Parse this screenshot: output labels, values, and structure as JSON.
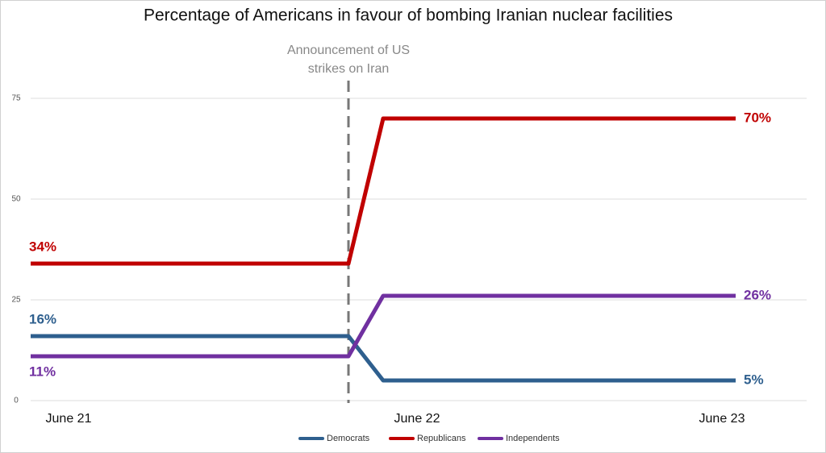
{
  "chart_data": {
    "type": "line",
    "title": "Percentage of Americans in favour of bombing Iranian nuclear facilities",
    "annotation_lines": [
      "Announcement of US",
      "strikes on Iran"
    ],
    "categories": [
      "June 21",
      null,
      "June 22",
      "June 23"
    ],
    "series": [
      {
        "name": "Democrats",
        "color": "#2e5f8e",
        "values": [
          16,
          16,
          5,
          5
        ],
        "value_labels": [
          "16%",
          null,
          null,
          "5%"
        ]
      },
      {
        "name": "Republicans",
        "color": "#c00000",
        "values": [
          34,
          34,
          70,
          70
        ],
        "value_labels": [
          "34%",
          null,
          null,
          "70%"
        ]
      },
      {
        "name": "Independents",
        "color": "#7030a0",
        "values": [
          11,
          11,
          26,
          26
        ],
        "value_labels": [
          "11%",
          null,
          null,
          "26%"
        ]
      }
    ],
    "ylim": [
      0,
      80
    ],
    "yticks": [
      0,
      25,
      50,
      75
    ],
    "grid": true,
    "legend": "bottom"
  }
}
